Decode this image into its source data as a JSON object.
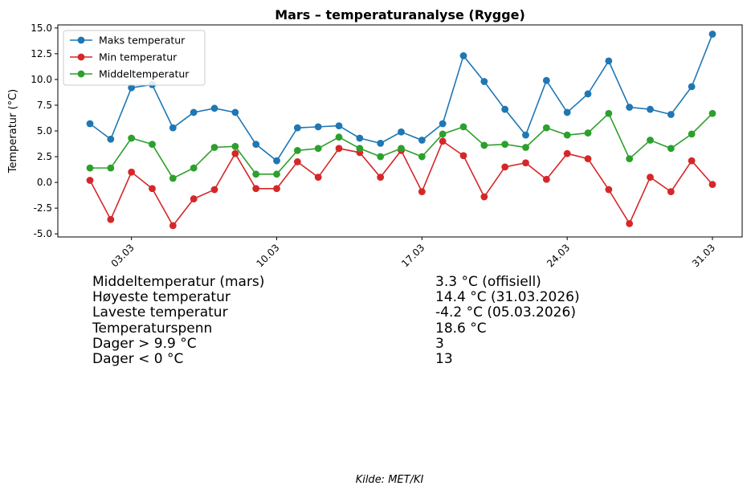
{
  "chart_data": {
    "type": "line",
    "title": "Mars – temperaturanalyse (Rygge)",
    "xlabel": "",
    "ylabel": "Temperatur (°C)",
    "x": [
      "01.03",
      "02.03",
      "03.03",
      "04.03",
      "05.03",
      "06.03",
      "07.03",
      "08.03",
      "09.03",
      "10.03",
      "11.03",
      "12.03",
      "13.03",
      "14.03",
      "15.03",
      "16.03",
      "17.03",
      "18.03",
      "19.03",
      "20.03",
      "21.03",
      "22.03",
      "23.03",
      "24.03",
      "25.03",
      "26.03",
      "27.03",
      "28.03",
      "29.03",
      "30.03",
      "31.03"
    ],
    "xticks": [
      "03.03",
      "10.03",
      "17.03",
      "24.03",
      "31.03"
    ],
    "yticks": [
      "-5.0",
      "-2.5",
      "0.0",
      "2.5",
      "5.0",
      "7.5",
      "10.0",
      "12.5",
      "15.0"
    ],
    "ylim": [
      -5.3,
      15.3
    ],
    "legend_position": "top-left",
    "series": [
      {
        "name": "Maks temperatur",
        "color": "#1f77b4",
        "values": [
          5.7,
          4.2,
          9.2,
          9.5,
          5.3,
          6.8,
          7.2,
          6.8,
          3.7,
          2.1,
          5.3,
          5.4,
          5.5,
          4.3,
          3.8,
          4.9,
          4.1,
          5.7,
          12.3,
          9.8,
          7.1,
          4.6,
          9.9,
          6.8,
          8.6,
          11.8,
          7.3,
          7.1,
          6.6,
          9.3,
          14.4
        ]
      },
      {
        "name": "Min temperatur",
        "color": "#d62728",
        "values": [
          0.2,
          -3.6,
          1.0,
          -0.6,
          -4.2,
          -1.6,
          -0.7,
          2.8,
          -0.6,
          -0.6,
          2.0,
          0.5,
          3.3,
          2.9,
          0.5,
          3.1,
          -0.9,
          4.0,
          2.6,
          -1.4,
          1.5,
          1.9,
          0.3,
          2.8,
          2.3,
          -0.7,
          -4.0,
          0.5,
          -0.9,
          2.1,
          -0.2
        ]
      },
      {
        "name": "Middeltemperatur",
        "color": "#2ca02c",
        "values": [
          1.4,
          1.4,
          4.3,
          3.7,
          0.4,
          1.4,
          3.4,
          3.5,
          0.8,
          0.8,
          3.1,
          3.3,
          4.4,
          3.3,
          2.5,
          3.3,
          2.5,
          4.7,
          5.4,
          3.6,
          3.7,
          3.4,
          5.3,
          4.6,
          4.8,
          6.7,
          2.3,
          4.1,
          3.3,
          4.7,
          6.7
        ]
      }
    ]
  },
  "stats": [
    {
      "label": "Middeltemperatur (mars)",
      "value": "3.3 °C (offisiell)"
    },
    {
      "label": "Høyeste temperatur",
      "value": "14.4 °C (31.03.2026)"
    },
    {
      "label": "Laveste temperatur",
      "value": "-4.2 °C (05.03.2026)"
    },
    {
      "label": "Temperaturspenn",
      "value": "18.6 °C"
    },
    {
      "label": "Dager > 9.9 °C",
      "value": "3"
    },
    {
      "label": "Dager < 0 °C",
      "value": "13"
    }
  ],
  "source": "Kilde: MET/KI"
}
